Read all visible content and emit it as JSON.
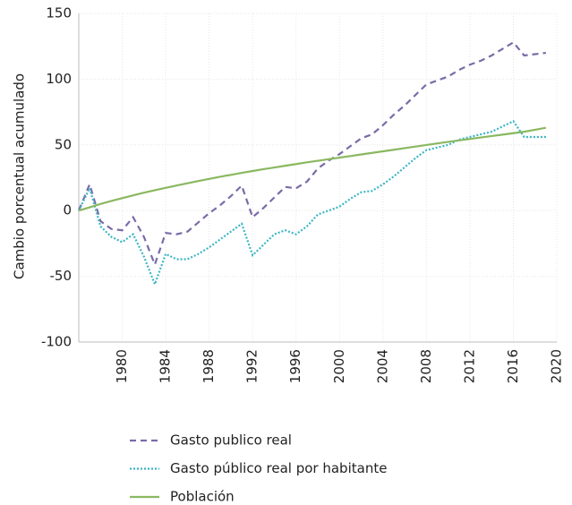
{
  "chart_data": {
    "type": "line",
    "ylabel": "Cambio porcentual acumulado",
    "x": [
      1976,
      1977,
      1978,
      1979,
      1980,
      1981,
      1982,
      1983,
      1984,
      1985,
      1986,
      1987,
      1988,
      1989,
      1990,
      1991,
      1992,
      1993,
      1994,
      1995,
      1996,
      1997,
      1998,
      1999,
      2000,
      2001,
      2002,
      2003,
      2004,
      2005,
      2006,
      2007,
      2008,
      2009,
      2010,
      2011,
      2012,
      2013,
      2014,
      2015,
      2016,
      2017,
      2018,
      2019
    ],
    "series": [
      {
        "name": "Gasto publico real",
        "color": "#7b6ba8",
        "dash": "dashed",
        "values": [
          0,
          20,
          -8,
          -14,
          -15,
          -5,
          -20,
          -41,
          -17,
          -18,
          -16,
          -9,
          -2,
          4,
          11,
          19,
          -5,
          2,
          10,
          18,
          17,
          22,
          32,
          38,
          43,
          49,
          55,
          58,
          65,
          73,
          80,
          88,
          96,
          99,
          102,
          107,
          111,
          114,
          118,
          123,
          128,
          118,
          119,
          120
        ]
      },
      {
        "name": "Gasto público real por habitante",
        "color": "#3bb5c4",
        "dash": "dotted",
        "values": [
          0,
          17,
          -12,
          -20,
          -24,
          -18,
          -35,
          -56,
          -33,
          -37,
          -37,
          -33,
          -28,
          -22,
          -16,
          -10,
          -34,
          -26,
          -18,
          -15,
          -18,
          -12,
          -3,
          0,
          3,
          9,
          14,
          15,
          20,
          26,
          33,
          40,
          46,
          48,
          50,
          54,
          56,
          58,
          60,
          64,
          68,
          56,
          56,
          56
        ]
      },
      {
        "name": "Población",
        "color": "#8ab860",
        "dash": "solid",
        "values": [
          0,
          2.5,
          5,
          7.3,
          9.5,
          11.6,
          13.6,
          15.5,
          17.3,
          19.1,
          20.8,
          22.5,
          24.1,
          25.7,
          27.2,
          28.7,
          30.1,
          31.5,
          32.8,
          34.1,
          35.4,
          36.7,
          37.9,
          39.1,
          40.3,
          41.5,
          42.7,
          43.9,
          45.1,
          46.3,
          47.5,
          48.7,
          49.9,
          51.1,
          52.3,
          53.4,
          54.5,
          55.6,
          56.7,
          57.8,
          58.9,
          60,
          61.5,
          63
        ]
      }
    ],
    "xlim": [
      1976,
      2020
    ],
    "xticks": [
      1980,
      1984,
      1988,
      1992,
      1996,
      2000,
      2004,
      2008,
      2012,
      2016,
      2020
    ],
    "ylim": [
      -100,
      150
    ],
    "yticks": [
      -100,
      -50,
      0,
      50,
      100,
      150
    ],
    "grid": true,
    "legend": "bottom"
  }
}
